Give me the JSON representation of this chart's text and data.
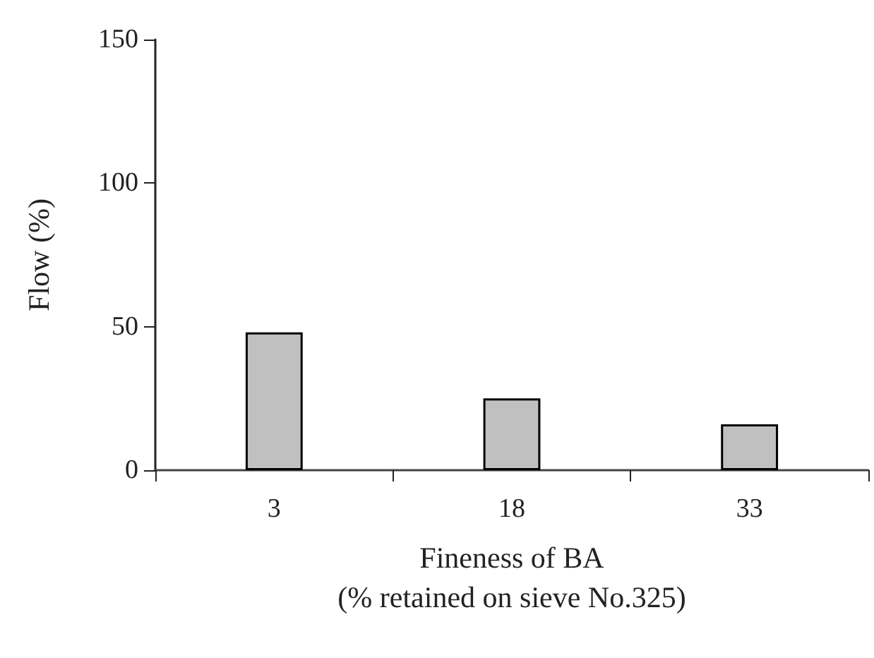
{
  "chart_data": {
    "type": "bar",
    "xlabel": "Fineness of BA\n(% retained on sieve No.325)",
    "ylabel": "Flow (%)",
    "categories": [
      "3",
      "18",
      "33"
    ],
    "values": [
      48,
      25,
      16
    ],
    "color": "#c0c0c0",
    "ylim": [
      0,
      150
    ],
    "yticks": [
      0,
      50,
      100,
      150
    ]
  }
}
